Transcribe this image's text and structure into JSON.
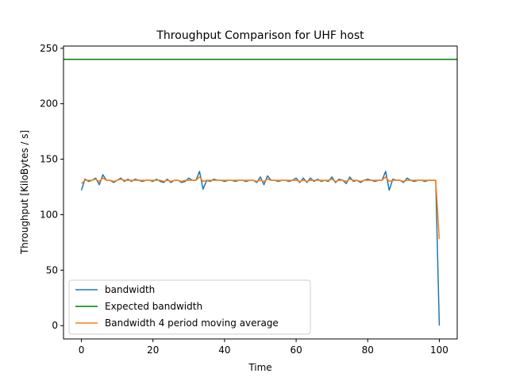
{
  "chart_data": {
    "type": "line",
    "title": "Throughput Comparison for UHF host",
    "xlabel": "Time",
    "ylabel": "Throughput [KiloBytes / s]",
    "xlim": [
      -5,
      105
    ],
    "ylim": [
      -12,
      252
    ],
    "xticks": [
      0,
      20,
      40,
      60,
      80,
      100
    ],
    "yticks": [
      0,
      50,
      100,
      150,
      200,
      250
    ],
    "grid": false,
    "legend_position": "lower-left",
    "series": [
      {
        "name": "bandwidth",
        "color": "#1f77b4",
        "x": [
          0,
          1,
          2,
          3,
          4,
          5,
          6,
          7,
          8,
          9,
          10,
          11,
          12,
          13,
          14,
          15,
          16,
          17,
          18,
          19,
          20,
          21,
          22,
          23,
          24,
          25,
          26,
          27,
          28,
          29,
          30,
          31,
          32,
          33,
          34,
          35,
          36,
          37,
          38,
          39,
          40,
          41,
          42,
          43,
          44,
          45,
          46,
          47,
          48,
          49,
          50,
          51,
          52,
          53,
          54,
          55,
          56,
          57,
          58,
          59,
          60,
          61,
          62,
          63,
          64,
          65,
          66,
          67,
          68,
          69,
          70,
          71,
          72,
          73,
          74,
          75,
          76,
          77,
          78,
          79,
          80,
          81,
          82,
          83,
          84,
          85,
          86,
          87,
          88,
          89,
          90,
          91,
          92,
          93,
          94,
          95,
          96,
          97,
          98,
          99,
          100
        ],
        "values": [
          122,
          132,
          130,
          131,
          133,
          127,
          136,
          131,
          131,
          129,
          131,
          133,
          130,
          132,
          130,
          132,
          131,
          130,
          131,
          131,
          130,
          132,
          130,
          129,
          132,
          129,
          131,
          131,
          129,
          130,
          133,
          131,
          131,
          139,
          123,
          131,
          130,
          132,
          131,
          131,
          130,
          131,
          131,
          130,
          131,
          131,
          130,
          131,
          131,
          129,
          134,
          127,
          135,
          131,
          131,
          130,
          131,
          131,
          130,
          131,
          133,
          129,
          133,
          129,
          133,
          130,
          132,
          130,
          131,
          130,
          134,
          129,
          132,
          131,
          128,
          134,
          130,
          131,
          129,
          131,
          132,
          131,
          130,
          131,
          131,
          139,
          122,
          132,
          131,
          131,
          129,
          133,
          131,
          130,
          131,
          131,
          130,
          131,
          131,
          131,
          0
        ]
      },
      {
        "name": "Expected bandwidth",
        "color": "#008000",
        "x": [
          -5,
          105
        ],
        "values": [
          240,
          240
        ]
      },
      {
        "name": "Bandwidth 4 period moving average",
        "color": "#ff7f0e",
        "x": [
          0,
          1,
          2,
          3,
          4,
          5,
          6,
          7,
          8,
          9,
          10,
          11,
          12,
          13,
          14,
          15,
          16,
          17,
          18,
          19,
          20,
          21,
          22,
          23,
          24,
          25,
          26,
          27,
          28,
          29,
          30,
          31,
          32,
          33,
          34,
          35,
          36,
          37,
          38,
          39,
          40,
          41,
          42,
          43,
          44,
          45,
          46,
          47,
          48,
          49,
          50,
          51,
          52,
          53,
          54,
          55,
          56,
          57,
          58,
          59,
          60,
          61,
          62,
          63,
          64,
          65,
          66,
          67,
          68,
          69,
          70,
          71,
          72,
          73,
          74,
          75,
          76,
          77,
          78,
          79,
          80,
          81,
          82,
          83,
          84,
          85,
          86,
          87,
          88,
          89,
          90,
          91,
          92,
          93,
          94,
          95,
          96,
          97,
          98,
          99,
          100
        ],
        "values": [
          128,
          131,
          131,
          131,
          132,
          130,
          133,
          131,
          131,
          130,
          131,
          132,
          131,
          131,
          131,
          131,
          131,
          131,
          131,
          131,
          131,
          131,
          131,
          130,
          131,
          130,
          131,
          131,
          130,
          131,
          131,
          131,
          131,
          134,
          130,
          131,
          131,
          131,
          131,
          131,
          131,
          131,
          131,
          131,
          131,
          131,
          131,
          131,
          131,
          130,
          131,
          130,
          132,
          131,
          131,
          131,
          131,
          131,
          131,
          131,
          131,
          130,
          131,
          130,
          131,
          131,
          131,
          131,
          131,
          131,
          132,
          130,
          131,
          131,
          130,
          132,
          131,
          131,
          130,
          131,
          131,
          131,
          131,
          131,
          131,
          134,
          130,
          131,
          131,
          131,
          130,
          131,
          131,
          131,
          131,
          131,
          131,
          131,
          131,
          131,
          78
        ]
      }
    ]
  }
}
